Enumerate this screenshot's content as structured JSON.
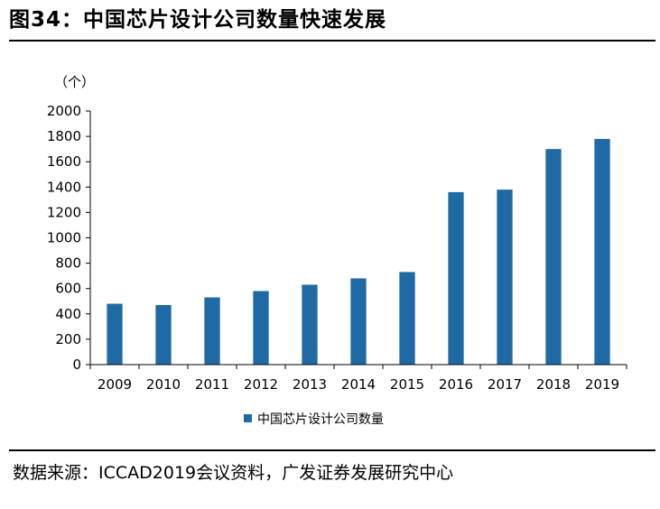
{
  "figure": {
    "title": "图34：中国芯片设计公司数量快速发展",
    "source": "数据来源：ICCAD2019会议资料，广发证券发展研究中心"
  },
  "chart_data": {
    "type": "bar",
    "title": "中国芯片设计公司数量快速发展",
    "unit_label": "（个）",
    "categories": [
      "2009",
      "2010",
      "2011",
      "2012",
      "2013",
      "2014",
      "2015",
      "2016",
      "2017",
      "2018",
      "2019"
    ],
    "series": [
      {
        "name": "中国芯片设计公司数量",
        "values": [
          480,
          470,
          530,
          580,
          630,
          680,
          730,
          1360,
          1380,
          1700,
          1780
        ]
      }
    ],
    "ylim": [
      0,
      2000
    ],
    "yticks": [
      0,
      200,
      400,
      600,
      800,
      1000,
      1200,
      1400,
      1600,
      1800,
      2000
    ],
    "grid": false,
    "legend": "bottom",
    "colors": {
      "bar": "#1F6AA5",
      "axis": "#000000"
    }
  }
}
